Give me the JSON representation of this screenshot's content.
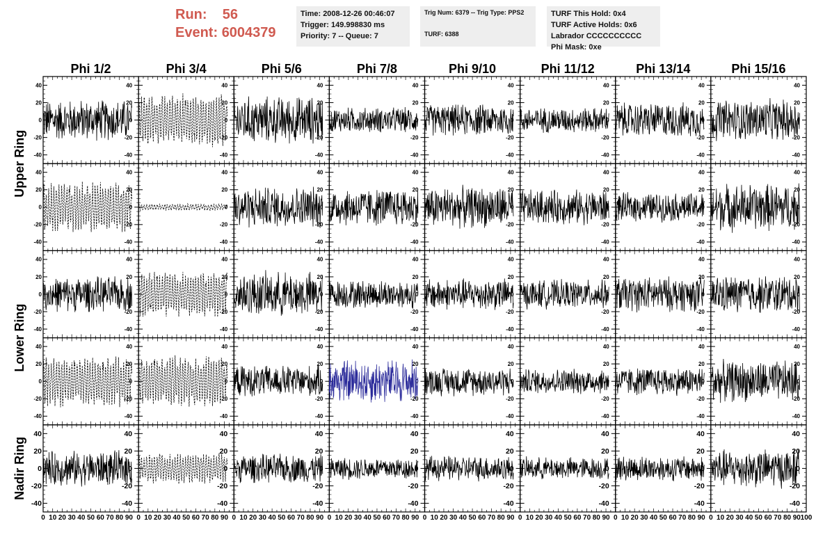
{
  "header": {
    "run_label": "Run:",
    "run_value": "56",
    "event_label": "Event:",
    "event_value": "6004379"
  },
  "info_time": {
    "time": "Time: 2008-12-26 00:46:07",
    "trigger": "Trigger: 149.998830 ms",
    "priority": "Priority: 7 -- Queue: 7"
  },
  "info_trig": {
    "trig": "Trig Num: 6379 -- Trig Type: PPS2",
    "turf": "TURF: 6388"
  },
  "info_turf": {
    "hold": "TURF This Hold: 0x4",
    "active": "TURF Active Holds: 0x6",
    "labrador": "Labrador CCCCCCCCCC",
    "phimask": "Phi Mask: 0xe"
  },
  "chart_data": {
    "type": "line",
    "columns": [
      "Phi 1/2",
      "Phi 3/4",
      "Phi 5/6",
      "Phi 7/8",
      "Phi 9/10",
      "Phi 11/12",
      "Phi 13/14",
      "Phi 15/16"
    ],
    "ring_labels": [
      "Upper Ring",
      "Lower Ring",
      "Nadir Ring"
    ],
    "xlim": [
      0,
      100
    ],
    "ylim": [
      -50,
      50
    ],
    "x_ticks": [
      0,
      10,
      20,
      30,
      40,
      50,
      60,
      70,
      80,
      90,
      100
    ],
    "x_tick_labels": [
      "0",
      "10",
      "20",
      "30",
      "40",
      "50",
      "60",
      "70",
      "80",
      "90",
      "100"
    ],
    "y_ticks": [
      -40,
      -20,
      0,
      20,
      40
    ],
    "y_tick_labels": [
      "-40",
      "-20",
      "0",
      "20",
      "40"
    ],
    "trace_x_range": [
      0,
      93
    ],
    "grid": false,
    "cells": [
      [
        {
          "amp": 26,
          "style": "solid"
        },
        {
          "amp": 32,
          "style": "dashed"
        },
        {
          "amp": 30,
          "style": "solid"
        },
        {
          "amp": 16,
          "style": "solid"
        },
        {
          "amp": 20,
          "style": "solid"
        },
        {
          "amp": 16,
          "style": "solid"
        },
        {
          "amp": 22,
          "style": "solid"
        },
        {
          "amp": 26,
          "style": "solid"
        }
      ],
      [
        {
          "amp": 30,
          "style": "dashed"
        },
        {
          "amp": 4,
          "style": "dashed"
        },
        {
          "amp": 26,
          "style": "solid"
        },
        {
          "amp": 24,
          "style": "solid"
        },
        {
          "amp": 26,
          "style": "solid"
        },
        {
          "amp": 22,
          "style": "solid"
        },
        {
          "amp": 18,
          "style": "solid"
        },
        {
          "amp": 30,
          "style": "solid"
        }
      ],
      [
        {
          "amp": 22,
          "style": "solid"
        },
        {
          "amp": 28,
          "style": "dashed"
        },
        {
          "amp": 28,
          "style": "solid"
        },
        {
          "amp": 18,
          "style": "solid"
        },
        {
          "amp": 20,
          "style": "solid"
        },
        {
          "amp": 18,
          "style": "solid"
        },
        {
          "amp": 22,
          "style": "solid"
        },
        {
          "amp": 24,
          "style": "solid"
        }
      ],
      [
        {
          "amp": 30,
          "style": "dashed"
        },
        {
          "amp": 30,
          "style": "dashed"
        },
        {
          "amp": 20,
          "style": "solid"
        },
        {
          "amp": 28,
          "style": "solid",
          "color": "#2a2a9a"
        },
        {
          "amp": 18,
          "style": "solid"
        },
        {
          "amp": 16,
          "style": "solid"
        },
        {
          "amp": 18,
          "style": "solid"
        },
        {
          "amp": 26,
          "style": "solid"
        }
      ],
      [
        {
          "amp": 22,
          "style": "solid"
        },
        {
          "amp": 18,
          "style": "dashed"
        },
        {
          "amp": 18,
          "style": "solid"
        },
        {
          "amp": 14,
          "style": "solid"
        },
        {
          "amp": 16,
          "style": "solid"
        },
        {
          "amp": 14,
          "style": "solid"
        },
        {
          "amp": 16,
          "style": "solid"
        },
        {
          "amp": 24,
          "style": "solid"
        }
      ]
    ]
  }
}
